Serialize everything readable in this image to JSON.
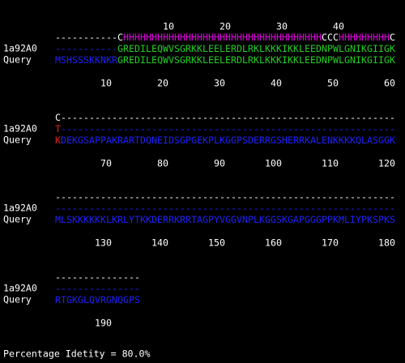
{
  "labels": {
    "template": "1a92A0",
    "query": "Query"
  },
  "blocks": [
    {
      "ruler_top": [
        10,
        20,
        30,
        40
      ],
      "structure": "-----------CHHHHHHHHHHHHHHHHHHHHHHHHHHHHHHHHHHHCCCHHHHHHHHHC",
      "template": "-----------GREDILEQWVSGRKKLEELERDLRKLKKKIKKLEEDNPWLGNIKGIIGK",
      "query": "MSHSSSKKNKRGREDILEQWVSGRKKLEELERDLRKLKKKIKKLEEDNPWLGNIKGIIGK",
      "ruler": [
        10,
        20,
        30,
        40,
        50,
        60
      ]
    },
    {
      "structure": "C-----------------------------------------------------------",
      "template": "T-----------------------------------------------------------",
      "query": "KDEKGSAPPAKRARTDQNEIDSGPGEKPLKGGPSDERRGSHERRKALENKKKKQLASGGK",
      "ruler": [
        70,
        80,
        90,
        100,
        110,
        120
      ]
    },
    {
      "structure": "------------------------------------------------------------",
      "template": "------------------------------------------------------------",
      "query": "MLSKKKKKKLKRLYTKKDERRKRRTAGPYVGGVNPLKGGSKGAPGGGPPKMLIYPKSPKS",
      "ruler": [
        130,
        140,
        150,
        160,
        170,
        180
      ]
    },
    {
      "structure": "---------------",
      "template": "---------------",
      "query": "RTGKGLQVRGNQGPS",
      "ruler": [
        190
      ]
    }
  ],
  "footer": "Percentage Idetity = 80.0%"
}
